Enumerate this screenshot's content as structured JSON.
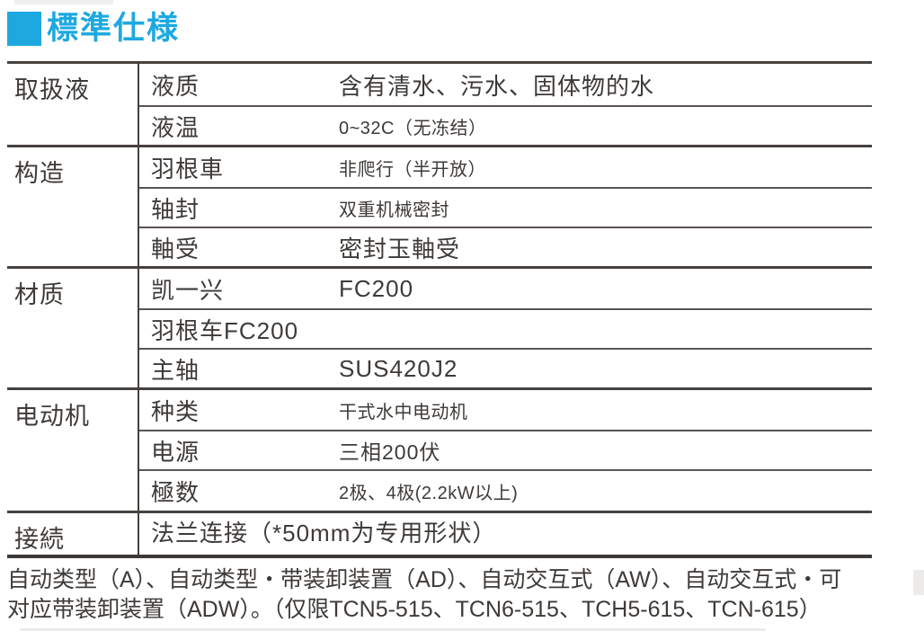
{
  "title": {
    "text": "標準仕様"
  },
  "table": {
    "sections": [
      {
        "category": "取扱液",
        "rows": [
          {
            "attr": "液质",
            "value": "含有清水、污水、固体物的水"
          },
          {
            "attr": "液温",
            "value": "0~32C（无冻结）"
          }
        ]
      },
      {
        "category": "构造",
        "rows": [
          {
            "attr": "羽根車",
            "value": "非爬行（半开放）"
          },
          {
            "attr": "轴封",
            "value": "双重机械密封"
          },
          {
            "attr": "軸受",
            "value": "密封玉軸受"
          }
        ]
      },
      {
        "category": "材质",
        "rows": [
          {
            "attr": "凯一兴",
            "value": "FC200"
          },
          {
            "attr": "羽根车FC200",
            "value": ""
          },
          {
            "attr": "主轴",
            "value": "SUS420J2"
          }
        ]
      },
      {
        "category": "电动机",
        "rows": [
          {
            "attr": "种类",
            "value": "干式水中电动机"
          },
          {
            "attr": "电源",
            "value": "三相200伏"
          },
          {
            "attr": "極数",
            "value": "2极、4极(2.2kW以上)"
          }
        ]
      },
      {
        "category": "接続",
        "rows": [
          {
            "attr": "法兰连接（*50mm为专用形状）",
            "value": ""
          }
        ]
      }
    ]
  },
  "footnote": {
    "line1": "自动类型（A）、自动类型・带装卸装置（AD）、自动交互式（AW）、自动交互式・可",
    "line2": "对应带装卸装置（ADW）。（仅限TCN5-515、TCN6-515、TCH5-615、TCN-615）"
  },
  "colors": {
    "accent_blue": "#1da9e0",
    "text": "#3e3a37",
    "border_dark": "#45413e",
    "border_inner": "#5a5552"
  }
}
